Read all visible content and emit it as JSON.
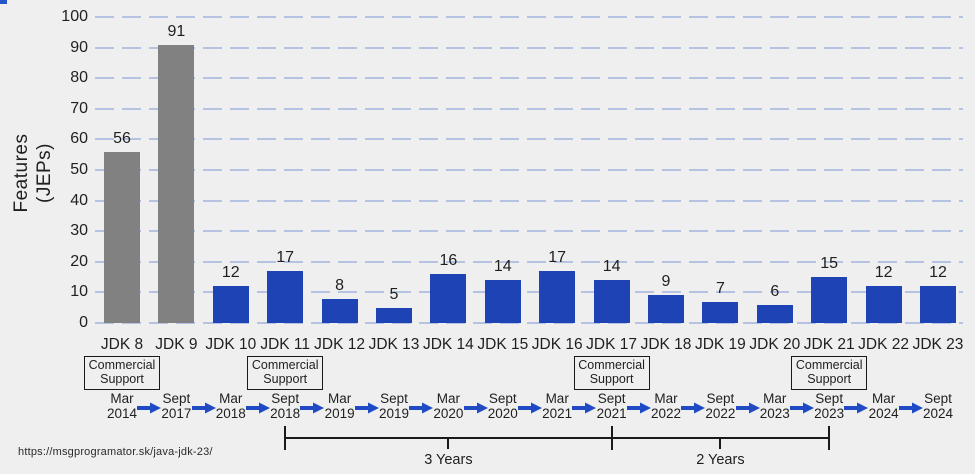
{
  "page": {
    "source_url": "https://msgprogramator.sk/java-jdk-23/"
  },
  "colors": {
    "background": "#efefef",
    "bar_blue": "#1d43b5",
    "bar_gray": "#818181",
    "gridline": "#b6c2e1",
    "arrow": "#1e4ac4",
    "bracket": "#1a1a1a",
    "text": "#1f1f1f",
    "corner_accent": "#2553c8"
  },
  "chart_data": {
    "type": "bar",
    "title": "",
    "ylabel": "Features (JEPs)",
    "ylabel_lines": [
      "Features",
      "(JEPs)"
    ],
    "xlabel": "",
    "ylim": [
      0,
      100
    ],
    "ytick_step": 10,
    "grid": "horizontal-dashed",
    "legend": "none",
    "categories": [
      "JDK 8",
      "JDK 9",
      "JDK 10",
      "JDK 11",
      "JDK 12",
      "JDK 13",
      "JDK 14",
      "JDK 15",
      "JDK 16",
      "JDK 17",
      "JDK 18",
      "JDK 19",
      "JDK 20",
      "JDK 21",
      "JDK 22",
      "JDK 23"
    ],
    "values": [
      56,
      91,
      12,
      17,
      8,
      5,
      16,
      14,
      17,
      14,
      9,
      7,
      6,
      15,
      12,
      12
    ],
    "bar_color_keys": [
      "bar_gray",
      "bar_gray",
      "bar_blue",
      "bar_blue",
      "bar_blue",
      "bar_blue",
      "bar_blue",
      "bar_blue",
      "bar_blue",
      "bar_blue",
      "bar_blue",
      "bar_blue",
      "bar_blue",
      "bar_blue",
      "bar_blue",
      "bar_blue"
    ],
    "release_dates": [
      [
        "Mar",
        "2014"
      ],
      [
        "Sept",
        "2017"
      ],
      [
        "Mar",
        "2018"
      ],
      [
        "Sept",
        "2018"
      ],
      [
        "Mar",
        "2019"
      ],
      [
        "Sept",
        "2019"
      ],
      [
        "Mar",
        "2020"
      ],
      [
        "Sept",
        "2020"
      ],
      [
        "Mar",
        "2021"
      ],
      [
        "Sept",
        "2021"
      ],
      [
        "Mar",
        "2022"
      ],
      [
        "Sept",
        "2022"
      ],
      [
        "Mar",
        "2023"
      ],
      [
        "Sept",
        "2023"
      ],
      [
        "Mar",
        "2024"
      ],
      [
        "Sept",
        "2024"
      ]
    ],
    "commercial_support": {
      "label_lines": [
        "Commercial",
        "Support"
      ],
      "column_indices": [
        0,
        3,
        9,
        13
      ]
    },
    "cadence_brackets": [
      {
        "from_index": 3,
        "to_index": 9,
        "label": "3 Years"
      },
      {
        "from_index": 9,
        "to_index": 13,
        "label": "2 Years"
      }
    ]
  }
}
